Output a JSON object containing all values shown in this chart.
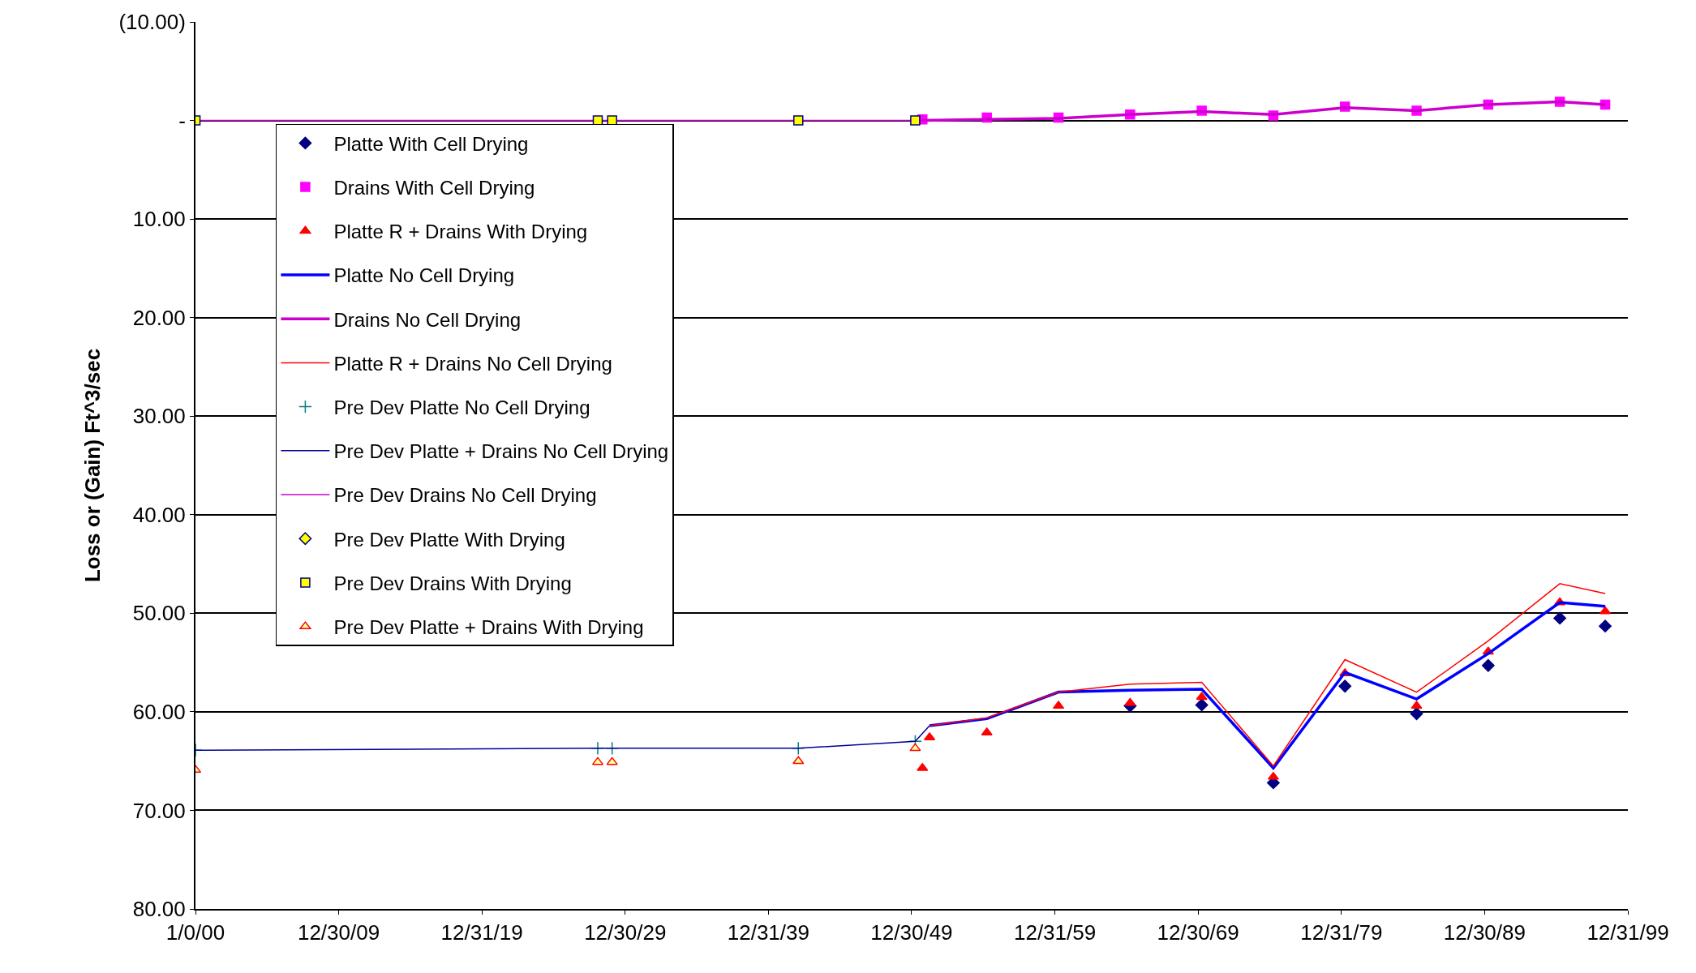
{
  "chart_data": {
    "type": "scatter",
    "ylabel": "Loss or (Gain) Ft^3/sec",
    "ylim": [
      80,
      -10
    ],
    "yticks": [
      {
        "value": -10,
        "label": "(10.00)"
      },
      {
        "value": 0,
        "label": "-"
      },
      {
        "value": 10,
        "label": "10.00"
      },
      {
        "value": 20,
        "label": "20.00"
      },
      {
        "value": 30,
        "label": "30.00"
      },
      {
        "value": 40,
        "label": "40.00"
      },
      {
        "value": 50,
        "label": "50.00"
      },
      {
        "value": 60,
        "label": "60.00"
      },
      {
        "value": 70,
        "label": "70.00"
      },
      {
        "value": 80,
        "label": "80.00"
      }
    ],
    "xlim": [
      "1899-12-31",
      "1999-12-31"
    ],
    "xticks": [
      {
        "value": "1899-12-31",
        "label": "1/0/00"
      },
      {
        "value": "1909-12-30",
        "label": "12/30/09"
      },
      {
        "value": "1919-12-31",
        "label": "12/31/19"
      },
      {
        "value": "1929-12-30",
        "label": "12/30/29"
      },
      {
        "value": "1939-12-31",
        "label": "12/31/39"
      },
      {
        "value": "1949-12-30",
        "label": "12/30/49"
      },
      {
        "value": "1959-12-31",
        "label": "12/31/59"
      },
      {
        "value": "1969-12-30",
        "label": "12/30/69"
      },
      {
        "value": "1979-12-31",
        "label": "12/31/79"
      },
      {
        "value": "1989-12-30",
        "label": "12/30/89"
      },
      {
        "value": "1999-12-31",
        "label": "12/31/99"
      }
    ],
    "grid": "y",
    "legend": "left",
    "series": [
      {
        "name": "Platte With Cell Drying",
        "marker": "diamond",
        "color": "#000080",
        "x": [
          "1965-04",
          "1970-04",
          "1975-04",
          "1980-04",
          "1985-04",
          "1990-04",
          "1995-04",
          "1998-06"
        ],
        "values": [
          59.4,
          59.3,
          67.2,
          57.4,
          60.2,
          55.3,
          50.5,
          51.3
        ]
      },
      {
        "name": "Drains With Cell Drying",
        "marker": "square",
        "color": "#ff00ff",
        "x": [
          "1950-10",
          "1955-04",
          "1960-04",
          "1965-04",
          "1970-04",
          "1975-04",
          "1980-04",
          "1985-04",
          "1990-04",
          "1995-04",
          "1998-06"
        ],
        "values": [
          -0.1,
          -0.3,
          -0.3,
          -0.6,
          -1.0,
          -0.5,
          -1.4,
          -1.0,
          -1.6,
          -1.9,
          -1.6
        ]
      },
      {
        "name": "Platte R + Drains With Drying",
        "marker": "triangle",
        "color": "#ff0000",
        "x": [
          "1950-10",
          "1951-04",
          "1955-04",
          "1960-04",
          "1965-04",
          "1970-04",
          "1975-04",
          "1980-04",
          "1985-04",
          "1990-04",
          "1995-04",
          "1998-06"
        ],
        "values": [
          65.7,
          62.6,
          62.1,
          59.4,
          59.1,
          58.5,
          66.6,
          56.1,
          59.4,
          53.9,
          48.9,
          49.8
        ]
      },
      {
        "name": "Platte No Cell Drying",
        "type": "line",
        "marker": "none",
        "color": "#0000ff",
        "x": [
          "1951-04",
          "1955-04",
          "1960-04",
          "1965-04",
          "1970-04",
          "1975-04",
          "1980-04",
          "1985-04",
          "1990-04",
          "1995-04",
          "1998-06"
        ],
        "values": [
          61.4,
          60.7,
          58.0,
          57.8,
          57.7,
          65.7,
          56.0,
          58.7,
          54.1,
          48.9,
          49.3
        ]
      },
      {
        "name": "Drains No Cell Drying",
        "type": "line",
        "marker": "none",
        "color": "#cc00cc",
        "x": [
          "1950-10",
          "1955-04",
          "1960-04",
          "1965-04",
          "1970-04",
          "1975-04",
          "1980-04",
          "1985-04",
          "1990-04",
          "1995-04",
          "1998-06"
        ],
        "values": [
          0.0,
          -0.1,
          -0.2,
          -0.6,
          -0.9,
          -0.6,
          -1.3,
          -1.0,
          -1.6,
          -1.9,
          -1.6
        ]
      },
      {
        "name": "Platte R + Drains No Cell Drying",
        "type": "line",
        "marker": "none",
        "color": "#ff0000",
        "x": [
          "1951-04",
          "1955-04",
          "1960-04",
          "1965-04",
          "1970-04",
          "1975-04",
          "1980-04",
          "1985-04",
          "1990-04",
          "1995-04",
          "1998-06"
        ],
        "values": [
          61.4,
          60.6,
          58.0,
          57.2,
          57.0,
          65.5,
          54.7,
          58.0,
          52.8,
          47.0,
          48.0
        ]
      },
      {
        "name": "Pre Dev Platte No Cell Drying",
        "marker": "cross",
        "color": "#008080",
        "x": [
          "1900-01-01",
          "1928-02",
          "1929-02",
          "1942-02",
          "1950-04"
        ],
        "values": [
          63.9,
          63.7,
          63.7,
          63.7,
          63.0
        ]
      },
      {
        "name": "Pre Dev Platte + Drains No Cell Drying",
        "type": "line",
        "marker": "none",
        "color": "#000099",
        "x": [
          "1900-01-01",
          "1928-02",
          "1929-02",
          "1942-02",
          "1950-04",
          "1951-04"
        ],
        "values": [
          63.9,
          63.7,
          63.7,
          63.7,
          63.0,
          61.4
        ]
      },
      {
        "name": "Pre Dev Drains No Cell Drying",
        "type": "line",
        "marker": "none",
        "color": "#cc00cc",
        "x": [
          "1900-01-01",
          "1928-02",
          "1929-02",
          "1942-02",
          "1950-04",
          "1950-10"
        ],
        "values": [
          0,
          0,
          0,
          0,
          0,
          0
        ]
      },
      {
        "name": "Pre Dev Platte With Drying",
        "marker": "diamond",
        "color": "#ffff00"
      },
      {
        "name": "Pre Dev Drains With Drying",
        "marker": "square",
        "color": "#ffff00",
        "x": [
          "1900-01-01",
          "1928-02",
          "1929-02",
          "1942-02",
          "1950-04"
        ],
        "values": [
          0,
          0,
          0,
          0,
          0
        ]
      },
      {
        "name": "Pre Dev Platte + Drains With Drying",
        "marker": "triangle",
        "color": "#ffff99",
        "x": [
          "1900-01-01",
          "1928-02",
          "1929-02",
          "1942-02",
          "1950-04"
        ],
        "values": [
          65.9,
          65.1,
          65.1,
          65.0,
          63.7
        ]
      }
    ]
  }
}
